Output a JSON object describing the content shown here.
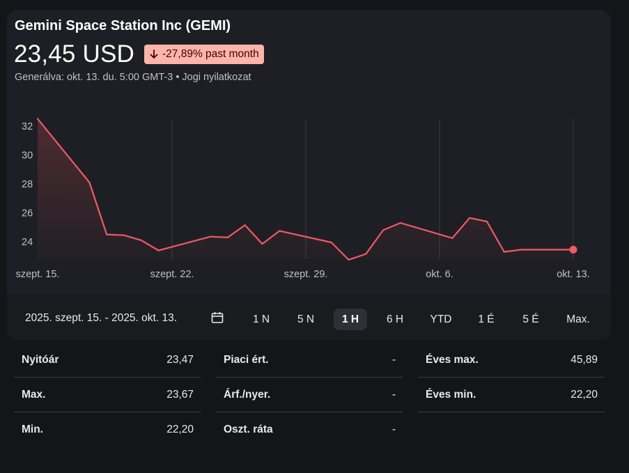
{
  "header": {
    "title": "Gemini Space Station Inc (GEMI)",
    "price": "23,45 USD",
    "change_badge": "-27,89% past month",
    "generated_text": "Generálva: okt. 13. du. 5:00 GMT-3 • Jogi nyilatkozat"
  },
  "colors": {
    "line": "#f05a63",
    "badge_bg": "#ffb4ab",
    "badge_text": "#410002",
    "background": "#141519",
    "card": "#1e1f24"
  },
  "chart_data": {
    "type": "line",
    "x_tick_labels": [
      "szept. 15.",
      "szept. 22.",
      "szept. 29.",
      "okt. 6.",
      "okt. 13."
    ],
    "y_tick_labels": [
      "32",
      "30",
      "28",
      "26",
      "24"
    ],
    "y_ticks": [
      32,
      30,
      28,
      26,
      24
    ],
    "ylim": [
      22.8,
      32.8
    ],
    "x": [
      "2025-09-12",
      "2025-09-15",
      "2025-09-16",
      "2025-09-17",
      "2025-09-18",
      "2025-09-19",
      "2025-09-22",
      "2025-09-23",
      "2025-09-24",
      "2025-09-25",
      "2025-09-26",
      "2025-09-29",
      "2025-09-30",
      "2025-10-01",
      "2025-10-02",
      "2025-10-03",
      "2025-10-06",
      "2025-10-07",
      "2025-10-08",
      "2025-10-09",
      "2025-10-10",
      "2025-10-13"
    ],
    "values": [
      32.5,
      28.1,
      24.5,
      24.45,
      24.1,
      23.4,
      24.35,
      24.3,
      25.15,
      23.85,
      24.75,
      23.95,
      22.75,
      23.15,
      24.8,
      25.3,
      24.25,
      25.65,
      25.4,
      23.3,
      23.45,
      23.45
    ],
    "grid": "vertical lines at x tick labels",
    "last_point_marker": true
  },
  "range_bar": {
    "date_range": "2025. szept. 15. - 2025. okt. 13.",
    "periods": [
      "1 N",
      "5 N",
      "1 H",
      "6 H",
      "YTD",
      "1 É",
      "5 É",
      "Max."
    ],
    "active_period": "1 H"
  },
  "stats": {
    "col1": [
      {
        "label": "Nyitóár",
        "value": "23,47"
      },
      {
        "label": "Max.",
        "value": "23,67"
      },
      {
        "label": "Min.",
        "value": "22,20"
      }
    ],
    "col2": [
      {
        "label": "Piaci ért.",
        "value": "-"
      },
      {
        "label": "Árf./nyer.",
        "value": "-"
      },
      {
        "label": "Oszt. ráta",
        "value": "-"
      }
    ],
    "col3": [
      {
        "label": "Éves max.",
        "value": "45,89"
      },
      {
        "label": "Éves min.",
        "value": "22,20"
      }
    ]
  }
}
